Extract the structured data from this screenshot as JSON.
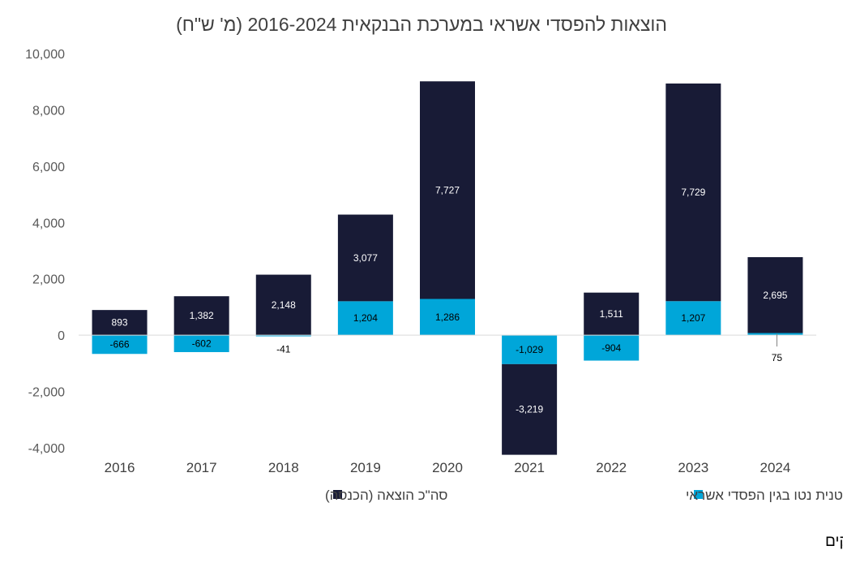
{
  "chart_data": {
    "type": "bar",
    "stacked": true,
    "title": "הוצאות להפסדי אשראי במערכת הבנקאית 2016-2024 (מ' ש\"ח)",
    "categories": [
      "2016",
      "2017",
      "2018",
      "2019",
      "2020",
      "2021",
      "2022",
      "2023",
      "2024"
    ],
    "series": [
      {
        "name": "הוצאה (הכנסה) פרטנית נטו בגין הפסדי אשראי",
        "color": "#00A6D9",
        "values": [
          -666,
          -602,
          -41,
          1204,
          1286,
          -1029,
          -904,
          1207,
          75
        ]
      },
      {
        "name": "סה\"כ הוצאה (הכנסה)",
        "color": "#181B36",
        "values": [
          893,
          1382,
          2148,
          3077,
          7727,
          -3219,
          1511,
          7729,
          2695
        ]
      }
    ],
    "value_labels": {
      "individual": [
        "-666",
        "-602",
        "-41",
        "1,204",
        "1,286",
        "-1,029",
        "-904",
        "1,207",
        "75"
      ],
      "total": [
        "893",
        "1,382",
        "2,148",
        "3,077",
        "7,727",
        "-3,219",
        "1,511",
        "7,729",
        "2,695"
      ]
    },
    "ylim": [
      -4000,
      10000
    ],
    "yticks": [
      -4000,
      -2000,
      0,
      2000,
      4000,
      6000,
      8000,
      10000
    ],
    "ytick_labels": [
      "-4,000",
      "-2,000",
      "0",
      "2,000",
      "4,000",
      "6,000",
      "8,000",
      "10,000"
    ],
    "grid": false,
    "legend_position": "bottom"
  },
  "source_note": "מקור –עיבודי IBI לדוחות הבנקים"
}
